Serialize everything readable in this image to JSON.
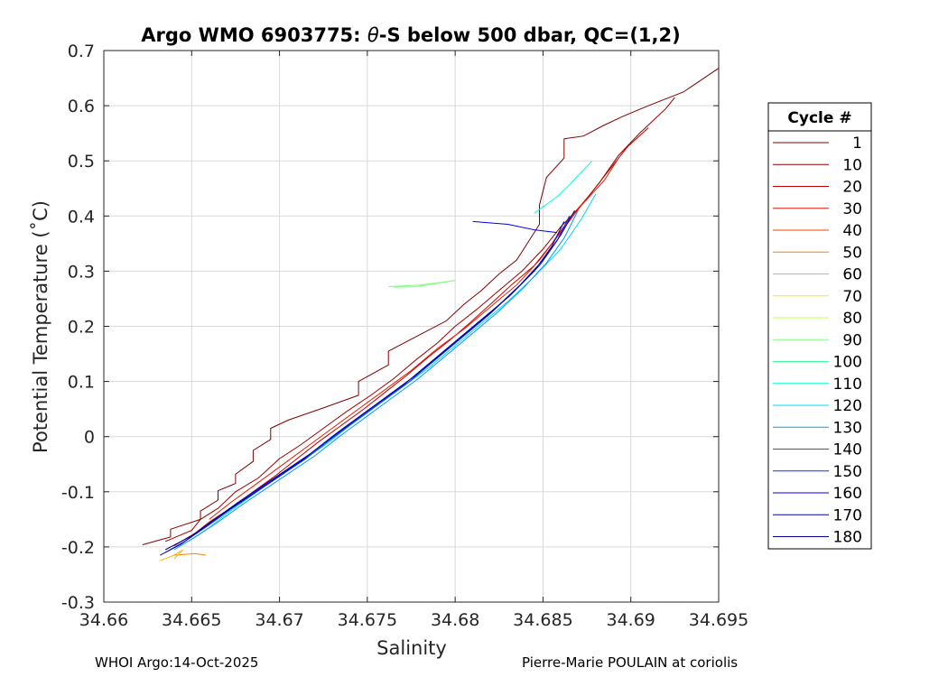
{
  "chart_data": {
    "type": "line",
    "title_prefix": "Argo WMO 6903775: ",
    "title_theta": "θ",
    "title_suffix": "-S below 500 dbar,  QC=(1,2)",
    "xlabel": "Salinity",
    "ylabel": "Potential Temperature (˚C)",
    "xlim": [
      34.66,
      34.695
    ],
    "ylim": [
      -0.3,
      0.7
    ],
    "xticks": [
      34.66,
      34.665,
      34.67,
      34.675,
      34.68,
      34.685,
      34.69,
      34.695
    ],
    "xtick_labels": [
      "34.66",
      "34.665",
      "34.67",
      "34.675",
      "34.68",
      "34.685",
      "34.69",
      "34.695"
    ],
    "yticks": [
      -0.3,
      -0.2,
      -0.1,
      0,
      0.1,
      0.2,
      0.3,
      0.4,
      0.5,
      0.6,
      0.7
    ],
    "ytick_labels": [
      "-0.3",
      "-0.2",
      "-0.1",
      "0",
      "0.1",
      "0.2",
      "0.3",
      "0.4",
      "0.5",
      "0.6",
      "0.7"
    ],
    "grid": true,
    "legend_position": "right",
    "legend": {
      "title": "Cycle #",
      "entries": [
        {
          "label": "1",
          "color": "#800000"
        },
        {
          "label": "10",
          "color": "#990000"
        },
        {
          "label": "20",
          "color": "#c00000"
        },
        {
          "label": "30",
          "color": "#e61a00"
        },
        {
          "label": "40",
          "color": "#ff4000"
        },
        {
          "label": "50",
          "color": "#ff8000"
        },
        {
          "label": "60",
          "color": "#ffb300"
        },
        {
          "label": "70",
          "color": "#ffe600"
        },
        {
          "label": "80",
          "color": "#bfff40"
        },
        {
          "label": "90",
          "color": "#80ff80"
        },
        {
          "label": "100",
          "color": "#40ff99"
        },
        {
          "label": "110",
          "color": "#00ffcc"
        },
        {
          "label": "120",
          "color": "#00d9ff"
        },
        {
          "label": "130",
          "color": "#0099ff"
        },
        {
          "label": "140",
          "color": "#0066ff"
        },
        {
          "label": "150",
          "color": "#0033ff"
        },
        {
          "label": "160",
          "color": "#0000e6"
        },
        {
          "label": "170",
          "color": "#0000b3"
        },
        {
          "label": "180",
          "color": "#000099"
        }
      ]
    },
    "series": [
      {
        "color": "#800000",
        "points": [
          [
            34.6622,
            -0.196
          ],
          [
            34.6638,
            -0.182
          ],
          [
            34.6638,
            -0.168
          ],
          [
            34.6655,
            -0.15
          ],
          [
            34.6655,
            -0.135
          ],
          [
            34.6665,
            -0.115
          ],
          [
            34.6665,
            -0.098
          ],
          [
            34.6675,
            -0.085
          ],
          [
            34.6675,
            -0.068
          ],
          [
            34.6685,
            -0.045
          ],
          [
            34.6685,
            -0.025
          ],
          [
            34.6695,
            -0.005
          ],
          [
            34.6695,
            0.015
          ],
          [
            34.6705,
            0.03
          ],
          [
            34.6725,
            0.052
          ],
          [
            34.6745,
            0.075
          ],
          [
            34.6745,
            0.1
          ],
          [
            34.6762,
            0.13
          ],
          [
            34.6762,
            0.155
          ],
          [
            34.678,
            0.185
          ],
          [
            34.6795,
            0.21
          ],
          [
            34.6805,
            0.24
          ],
          [
            34.6815,
            0.265
          ],
          [
            34.6825,
            0.295
          ],
          [
            34.6835,
            0.32
          ],
          [
            34.684,
            0.345
          ],
          [
            34.6848,
            0.385
          ],
          [
            34.6848,
            0.42
          ],
          [
            34.6852,
            0.47
          ],
          [
            34.6862,
            0.505
          ],
          [
            34.6862,
            0.54
          ],
          [
            34.6873,
            0.545
          ],
          [
            34.6885,
            0.565
          ],
          [
            34.6895,
            0.58
          ],
          [
            34.691,
            0.6
          ],
          [
            34.693,
            0.625
          ],
          [
            34.695,
            0.668
          ]
        ]
      },
      {
        "color": "#990000",
        "points": [
          [
            34.6635,
            -0.19
          ],
          [
            34.665,
            -0.17
          ],
          [
            34.6655,
            -0.15
          ],
          [
            34.6665,
            -0.13
          ],
          [
            34.6675,
            -0.1
          ],
          [
            34.6688,
            -0.075
          ],
          [
            34.67,
            -0.04
          ],
          [
            34.6712,
            -0.015
          ],
          [
            34.6725,
            0.015
          ],
          [
            34.6738,
            0.045
          ],
          [
            34.6752,
            0.075
          ],
          [
            34.6765,
            0.105
          ],
          [
            34.6778,
            0.14
          ],
          [
            34.679,
            0.17
          ],
          [
            34.68,
            0.2
          ],
          [
            34.6812,
            0.23
          ],
          [
            34.6825,
            0.265
          ],
          [
            34.6838,
            0.3
          ],
          [
            34.685,
            0.34
          ],
          [
            34.686,
            0.38
          ],
          [
            34.6872,
            0.42
          ],
          [
            34.6882,
            0.46
          ],
          [
            34.6893,
            0.51
          ],
          [
            34.6905,
            0.55
          ],
          [
            34.692,
            0.595
          ],
          [
            34.6925,
            0.615
          ]
        ]
      },
      {
        "color": "#c00000",
        "points": [
          [
            34.664,
            -0.198
          ],
          [
            34.6652,
            -0.175
          ],
          [
            34.666,
            -0.155
          ],
          [
            34.6672,
            -0.13
          ],
          [
            34.6685,
            -0.1
          ],
          [
            34.6698,
            -0.07
          ],
          [
            34.671,
            -0.04
          ],
          [
            34.6722,
            -0.01
          ],
          [
            34.6735,
            0.02
          ],
          [
            34.6748,
            0.05
          ],
          [
            34.676,
            0.08
          ],
          [
            34.6772,
            0.11
          ],
          [
            34.6785,
            0.145
          ],
          [
            34.6797,
            0.175
          ],
          [
            34.6808,
            0.205
          ],
          [
            34.682,
            0.24
          ],
          [
            34.6832,
            0.275
          ],
          [
            34.6845,
            0.31
          ],
          [
            34.6855,
            0.35
          ],
          [
            34.6865,
            0.395
          ],
          [
            34.6877,
            0.44
          ],
          [
            34.6888,
            0.485
          ],
          [
            34.6898,
            0.525
          ],
          [
            34.691,
            0.56
          ]
        ]
      },
      {
        "color": "#e61a00",
        "points": [
          [
            34.666,
            -0.15
          ],
          [
            34.6672,
            -0.12
          ],
          [
            34.6685,
            -0.09
          ],
          [
            34.67,
            -0.055
          ],
          [
            34.6715,
            -0.02
          ],
          [
            34.673,
            0.015
          ],
          [
            34.6745,
            0.05
          ],
          [
            34.676,
            0.085
          ],
          [
            34.6775,
            0.12
          ],
          [
            34.679,
            0.16
          ],
          [
            34.6805,
            0.195
          ],
          [
            34.682,
            0.235
          ],
          [
            34.6835,
            0.275
          ],
          [
            34.6848,
            0.32
          ],
          [
            34.686,
            0.37
          ],
          [
            34.6872,
            0.42
          ],
          [
            34.6885,
            0.465
          ],
          [
            34.6892,
            0.5
          ]
        ]
      },
      {
        "color": "#ff8000",
        "points": [
          [
            34.664,
            -0.215
          ],
          [
            34.6652,
            -0.212
          ],
          [
            34.6658,
            -0.215
          ]
        ]
      },
      {
        "color": "#ffb300",
        "points": [
          [
            34.6632,
            -0.225
          ],
          [
            34.664,
            -0.215
          ],
          [
            34.6645,
            -0.205
          ],
          [
            34.664,
            -0.222
          ]
        ]
      },
      {
        "color": "#80ff80",
        "points": [
          [
            34.6762,
            0.272
          ],
          [
            34.678,
            0.275
          ],
          [
            34.68,
            0.283
          ],
          [
            34.6778,
            0.272
          ],
          [
            34.6765,
            0.271
          ]
        ]
      },
      {
        "color": "#00ffcc",
        "points": [
          [
            34.6845,
            0.405
          ],
          [
            34.6858,
            0.435
          ],
          [
            34.6863,
            0.45
          ],
          [
            34.6872,
            0.48
          ],
          [
            34.6878,
            0.5
          ]
        ]
      },
      {
        "color": "#00d9ff",
        "points": [
          [
            34.6648,
            -0.19
          ],
          [
            34.666,
            -0.165
          ],
          [
            34.6672,
            -0.135
          ],
          [
            34.6685,
            -0.105
          ],
          [
            34.6698,
            -0.075
          ],
          [
            34.6712,
            -0.045
          ],
          [
            34.6726,
            -0.015
          ],
          [
            34.674,
            0.02
          ],
          [
            34.6755,
            0.055
          ],
          [
            34.677,
            0.09
          ],
          [
            34.6785,
            0.125
          ],
          [
            34.68,
            0.165
          ],
          [
            34.6815,
            0.205
          ],
          [
            34.683,
            0.245
          ],
          [
            34.6845,
            0.29
          ],
          [
            34.686,
            0.34
          ],
          [
            34.6872,
            0.395
          ],
          [
            34.688,
            0.44
          ]
        ]
      },
      {
        "color": "#0099ff",
        "points": [
          [
            34.664,
            -0.205
          ],
          [
            34.6652,
            -0.182
          ],
          [
            34.6665,
            -0.155
          ],
          [
            34.6678,
            -0.125
          ],
          [
            34.6692,
            -0.095
          ],
          [
            34.6706,
            -0.065
          ],
          [
            34.672,
            -0.035
          ],
          [
            34.6734,
            0.0
          ],
          [
            34.6749,
            0.035
          ],
          [
            34.6764,
            0.07
          ],
          [
            34.6779,
            0.105
          ],
          [
            34.6794,
            0.145
          ],
          [
            34.6809,
            0.185
          ],
          [
            34.6824,
            0.225
          ],
          [
            34.6839,
            0.27
          ],
          [
            34.6852,
            0.315
          ],
          [
            34.6862,
            0.36
          ],
          [
            34.687,
            0.41
          ]
        ]
      },
      {
        "color": "#0033ff",
        "points": [
          [
            34.6635,
            -0.21
          ],
          [
            34.6646,
            -0.19
          ],
          [
            34.666,
            -0.16
          ],
          [
            34.6673,
            -0.13
          ],
          [
            34.6687,
            -0.1
          ],
          [
            34.6701,
            -0.07
          ],
          [
            34.6715,
            -0.04
          ],
          [
            34.6729,
            -0.005
          ],
          [
            34.6744,
            0.03
          ],
          [
            34.6759,
            0.065
          ],
          [
            34.6774,
            0.1
          ],
          [
            34.6789,
            0.14
          ],
          [
            34.6804,
            0.18
          ],
          [
            34.6819,
            0.22
          ],
          [
            34.6834,
            0.265
          ],
          [
            34.6848,
            0.31
          ],
          [
            34.6858,
            0.355
          ],
          [
            34.6865,
            0.4
          ]
        ]
      },
      {
        "color": "#0000e6",
        "points": [
          [
            34.681,
            0.39
          ],
          [
            34.683,
            0.385
          ],
          [
            34.6845,
            0.375
          ],
          [
            34.6858,
            0.37
          ]
        ]
      },
      {
        "color": "#0000b3",
        "points": [
          [
            34.6632,
            -0.215
          ],
          [
            34.6644,
            -0.195
          ],
          [
            34.6657,
            -0.165
          ],
          [
            34.667,
            -0.135
          ],
          [
            34.6684,
            -0.105
          ],
          [
            34.6698,
            -0.075
          ],
          [
            34.6712,
            -0.045
          ],
          [
            34.6726,
            -0.01
          ],
          [
            34.6741,
            0.025
          ],
          [
            34.6756,
            0.06
          ],
          [
            34.6771,
            0.095
          ],
          [
            34.6786,
            0.135
          ],
          [
            34.6801,
            0.175
          ],
          [
            34.6816,
            0.215
          ],
          [
            34.6831,
            0.255
          ],
          [
            34.6845,
            0.3
          ],
          [
            34.6855,
            0.345
          ],
          [
            34.6862,
            0.39
          ]
        ]
      },
      {
        "color": "#000099",
        "points": [
          [
            34.6635,
            -0.205
          ],
          [
            34.665,
            -0.18
          ],
          [
            34.6663,
            -0.15
          ],
          [
            34.6676,
            -0.12
          ],
          [
            34.669,
            -0.09
          ],
          [
            34.6704,
            -0.06
          ],
          [
            34.6718,
            -0.03
          ],
          [
            34.6732,
            0.005
          ],
          [
            34.6747,
            0.04
          ],
          [
            34.6762,
            0.075
          ],
          [
            34.6777,
            0.11
          ],
          [
            34.6792,
            0.15
          ],
          [
            34.6807,
            0.19
          ],
          [
            34.6822,
            0.23
          ],
          [
            34.6837,
            0.275
          ],
          [
            34.685,
            0.32
          ],
          [
            34.686,
            0.365
          ],
          [
            34.6868,
            0.41
          ]
        ]
      }
    ]
  },
  "footer": {
    "left": "WHOI Argo:14-Oct-2025",
    "right": "Pierre-Marie POULAIN at coriolis"
  }
}
